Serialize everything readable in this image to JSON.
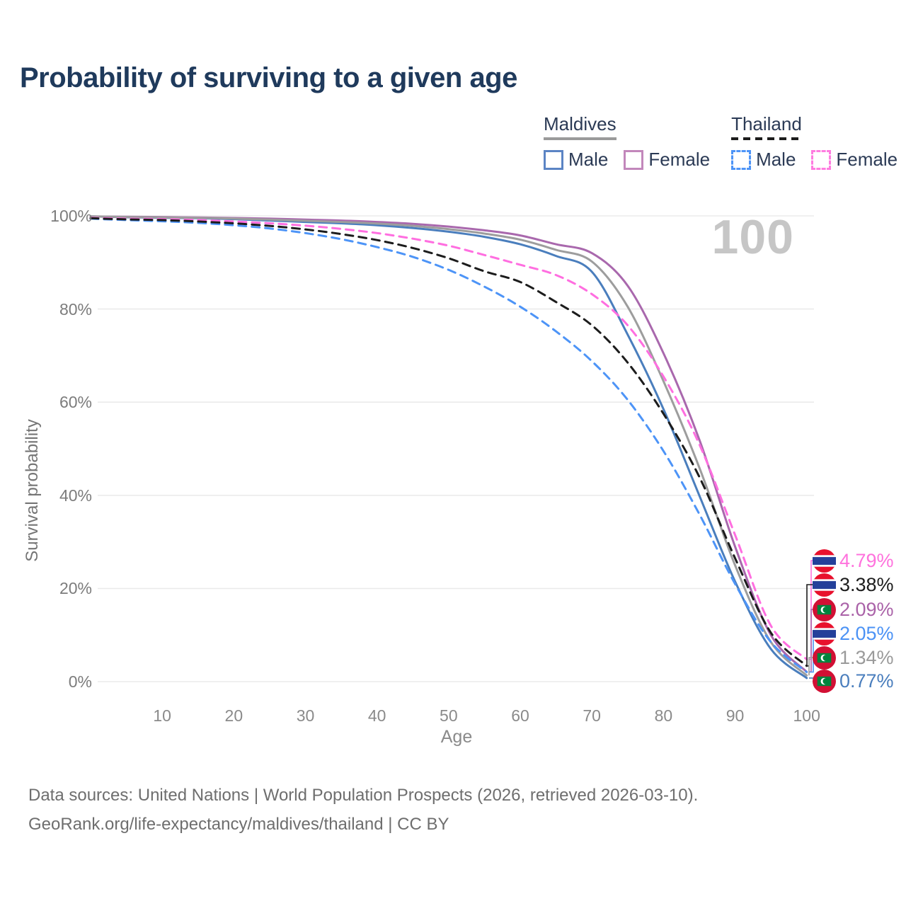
{
  "title": "Probability of surviving to a given age",
  "legend": {
    "groups": [
      {
        "id": "maldives",
        "label": "Maldives",
        "line_style": "solid",
        "line_color": "#9a9a9a",
        "items": [
          {
            "id": "maldives-male",
            "label": "Male",
            "style": "solid",
            "color": "#5b84c4"
          },
          {
            "id": "maldives-female",
            "label": "Female",
            "style": "solid",
            "color": "#c287bb"
          }
        ]
      },
      {
        "id": "thailand",
        "label": "Thailand",
        "line_style": "dashed",
        "line_color": "#1c1c1c",
        "items": [
          {
            "id": "thailand-male",
            "label": "Male",
            "style": "dashed",
            "color": "#4d94f7"
          },
          {
            "id": "thailand-female",
            "label": "Female",
            "style": "dashed",
            "color": "#ff7ce0"
          }
        ]
      }
    ]
  },
  "chart_data": {
    "type": "line",
    "title": "Probability of surviving to a given age",
    "xlabel": "Age",
    "ylabel": "Survival probability",
    "age_indicator": "100",
    "xlim": [
      0,
      102
    ],
    "ylim": [
      0,
      100
    ],
    "grid": "horizontal",
    "legend_position": "top-right",
    "x_ticks": [
      {
        "value": 10,
        "label": "10"
      },
      {
        "value": 20,
        "label": "20"
      },
      {
        "value": 30,
        "label": "30"
      },
      {
        "value": 40,
        "label": "40"
      },
      {
        "value": 50,
        "label": "50"
      },
      {
        "value": 60,
        "label": "60"
      },
      {
        "value": 70,
        "label": "70"
      },
      {
        "value": 80,
        "label": "80"
      },
      {
        "value": 90,
        "label": "90"
      },
      {
        "value": 100,
        "label": "100"
      }
    ],
    "y_ticks": [
      {
        "value": 0,
        "label": "0%"
      },
      {
        "value": 20,
        "label": "20%"
      },
      {
        "value": 40,
        "label": "40%"
      },
      {
        "value": 60,
        "label": "60%"
      },
      {
        "value": 80,
        "label": "80%"
      },
      {
        "value": 100,
        "label": "100%"
      }
    ],
    "x": [
      0,
      5,
      10,
      15,
      20,
      25,
      30,
      35,
      40,
      45,
      50,
      55,
      60,
      65,
      70,
      75,
      80,
      85,
      90,
      95,
      100
    ],
    "series": [
      {
        "id": "maldives-male",
        "name": "Maldives Male",
        "country": "Maldives",
        "sex": "Male",
        "color": "#4a7ebd",
        "dash": false,
        "end_label": "0.77%",
        "values": [
          99.9,
          99.7,
          99.6,
          99.5,
          99.3,
          99.0,
          98.7,
          98.4,
          98.0,
          97.4,
          96.6,
          95.5,
          93.9,
          91.4,
          88.0,
          74.5,
          58.5,
          40.0,
          21.5,
          7.0,
          0.77
        ]
      },
      {
        "id": "maldives-female",
        "name": "Maldives Female",
        "country": "Maldives",
        "sex": "Female",
        "color": "#a968ad",
        "dash": false,
        "end_label": "2.09%",
        "values": [
          99.9,
          99.8,
          99.75,
          99.65,
          99.55,
          99.4,
          99.2,
          99.0,
          98.7,
          98.3,
          97.7,
          96.9,
          95.8,
          93.9,
          92.0,
          85.0,
          70.5,
          52.0,
          29.0,
          10.0,
          2.09
        ]
      },
      {
        "id": "maldives-both",
        "name": "Maldives Both sexes",
        "country": "Maldives",
        "sex": "Both",
        "color": "#9d9d9d",
        "dash": false,
        "end_label": "1.34%",
        "values": [
          99.9,
          99.75,
          99.68,
          99.58,
          99.43,
          99.2,
          98.95,
          98.7,
          98.35,
          97.85,
          97.15,
          96.2,
          94.9,
          92.7,
          90.2,
          80.5,
          64.5,
          46.0,
          25.0,
          8.5,
          1.34
        ]
      },
      {
        "id": "thailand-male",
        "name": "Thailand Male",
        "country": "Thailand",
        "sex": "Male",
        "color": "#4d94f7",
        "dash": true,
        "end_label": "2.05%",
        "values": [
          99.4,
          99.1,
          98.85,
          98.5,
          98.0,
          97.3,
          96.3,
          95.0,
          93.3,
          91.2,
          88.4,
          84.8,
          80.5,
          75.2,
          68.8,
          60.5,
          49.5,
          36.0,
          21.0,
          8.5,
          2.05
        ]
      },
      {
        "id": "thailand-female",
        "name": "Thailand Female",
        "country": "Thailand",
        "sex": "Female",
        "color": "#ff6ee0",
        "dash": true,
        "end_label": "4.79%",
        "values": [
          99.6,
          99.4,
          99.3,
          99.1,
          98.8,
          98.4,
          97.9,
          97.2,
          96.3,
          95.1,
          93.6,
          91.6,
          89.5,
          87.3,
          83.2,
          76.5,
          65.5,
          51.0,
          31.5,
          12.0,
          4.79
        ]
      },
      {
        "id": "thailand-both",
        "name": "Thailand Both sexes",
        "country": "Thailand",
        "sex": "Both",
        "color": "#1c1c1c",
        "dash": true,
        "end_label": "3.38%",
        "values": [
          99.5,
          99.25,
          99.1,
          98.8,
          98.4,
          97.85,
          97.1,
          96.1,
          94.8,
          93.1,
          90.9,
          88.1,
          85.8,
          81.5,
          76.5,
          68.5,
          57.5,
          44.0,
          26.5,
          10.5,
          3.38
        ]
      }
    ]
  },
  "end_labels": [
    {
      "value": "4.79%",
      "color": "#ff72dd",
      "flag": "thailand",
      "series": "thailand-female"
    },
    {
      "value": "3.38%",
      "color": "#1c1c1c",
      "flag": "thailand",
      "series": "thailand-both"
    },
    {
      "value": "2.09%",
      "color": "#aa62a8",
      "flag": "maldives",
      "series": "maldives-female"
    },
    {
      "value": "2.05%",
      "color": "#4b92f5",
      "flag": "thailand",
      "series": "thailand-male"
    },
    {
      "value": "1.34%",
      "color": "#9a9a9a",
      "flag": "maldives",
      "series": "maldives-both"
    },
    {
      "value": "0.77%",
      "color": "#4a7ebd",
      "flag": "maldives",
      "series": "maldives-male"
    }
  ],
  "flags": {
    "thailand": {
      "red": "#e8112d",
      "white": "#f4f5f8",
      "blue": "#24409a"
    },
    "maldives": {
      "red": "#d21034",
      "green": "#00843d",
      "white": "#ffffff"
    }
  },
  "footer": {
    "line1": "Data sources: United Nations | World Population Prospects (2026, retrieved 2026-03-10).",
    "line2": "GeoRank.org/life-expectancy/maldives/thailand | CC BY"
  }
}
